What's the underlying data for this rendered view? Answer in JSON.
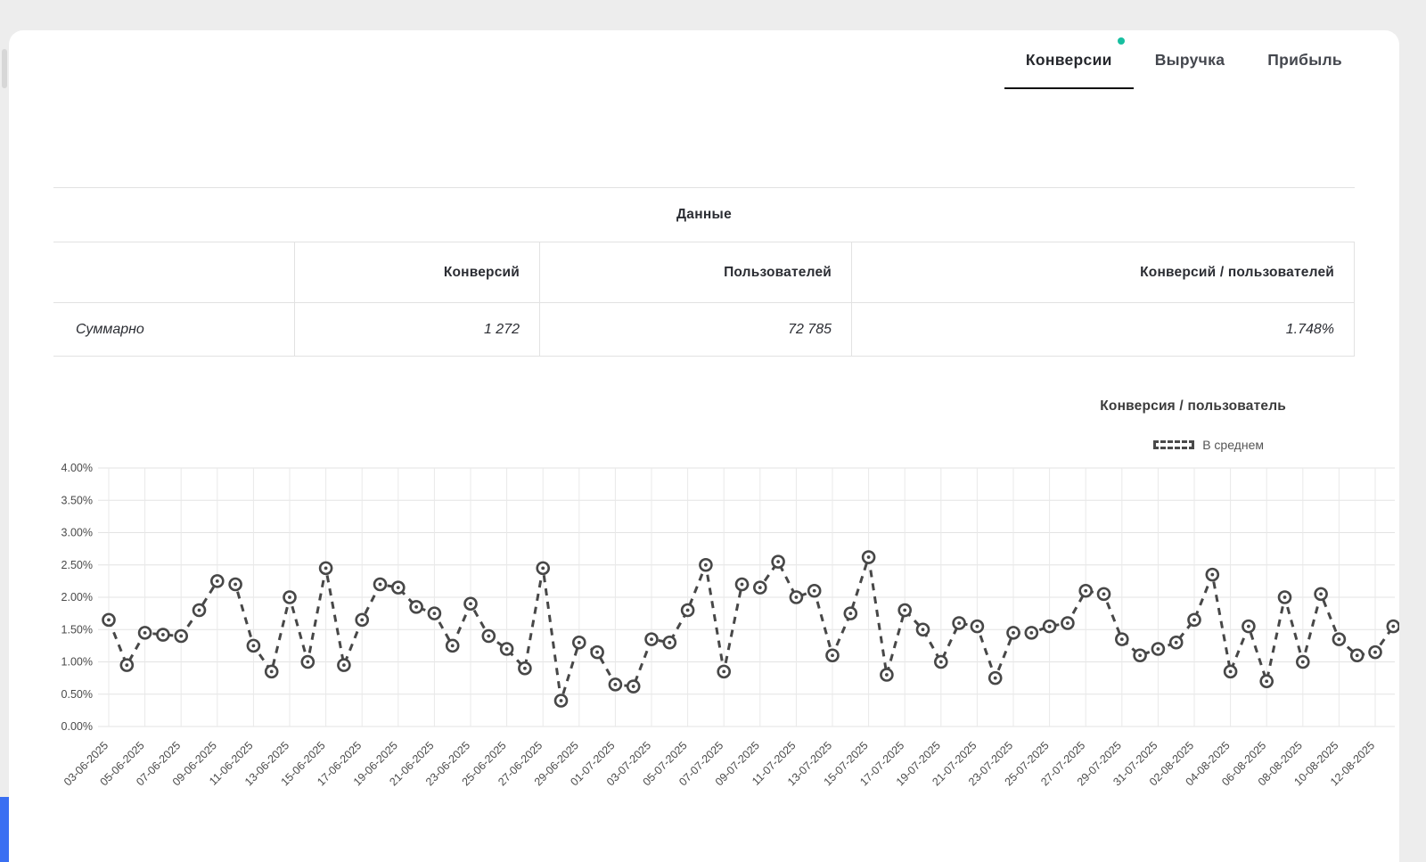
{
  "accent_color": "#17bfa0",
  "tabs": [
    {
      "label": "Конверсии",
      "active": true
    },
    {
      "label": "Выручка",
      "active": false
    },
    {
      "label": "Прибыль",
      "active": false
    }
  ],
  "table": {
    "title": "Данные",
    "columns": [
      "Конверсий",
      "Пользователей",
      "Конверсий / пользователей"
    ],
    "rows": [
      {
        "label": "Суммарно",
        "values": [
          "1 272",
          "72 785",
          "1.748%"
        ]
      }
    ]
  },
  "chart_data": {
    "type": "line",
    "title": "Конверсия / пользователь",
    "legend": [
      {
        "label": "В среднем",
        "style": "dashed"
      }
    ],
    "legend_position": "top-right",
    "grid": true,
    "line_color": "#474747",
    "ylim": [
      0,
      4
    ],
    "ytick_step": 0.5,
    "y_tick_labels": [
      "0.00%",
      "0.50%",
      "1.00%",
      "1.50%",
      "2.00%",
      "2.50%",
      "3.00%",
      "3.50%",
      "4.00%"
    ],
    "x_tick_labels": [
      "03-06-2025",
      "05-06-2025",
      "07-06-2025",
      "09-06-2025",
      "11-06-2025",
      "13-06-2025",
      "15-06-2025",
      "17-06-2025",
      "19-06-2025",
      "21-06-2025",
      "23-06-2025",
      "25-06-2025",
      "27-06-2025",
      "29-06-2025",
      "01-07-2025",
      "03-07-2025",
      "05-07-2025",
      "07-07-2025",
      "09-07-2025",
      "11-07-2025",
      "13-07-2025",
      "15-07-2025",
      "17-07-2025",
      "19-07-2025",
      "21-07-2025",
      "23-07-2025",
      "25-07-2025",
      "27-07-2025",
      "29-07-2025",
      "31-07-2025",
      "02-08-2025",
      "04-08-2025",
      "06-08-2025",
      "08-08-2025",
      "10-08-2025",
      "12-08-2025"
    ],
    "x": [
      "03-06-2025",
      "04-06-2025",
      "05-06-2025",
      "06-06-2025",
      "07-06-2025",
      "08-06-2025",
      "09-06-2025",
      "10-06-2025",
      "11-06-2025",
      "12-06-2025",
      "13-06-2025",
      "14-06-2025",
      "15-06-2025",
      "16-06-2025",
      "17-06-2025",
      "18-06-2025",
      "19-06-2025",
      "20-06-2025",
      "21-06-2025",
      "22-06-2025",
      "23-06-2025",
      "24-06-2025",
      "25-06-2025",
      "26-06-2025",
      "27-06-2025",
      "28-06-2025",
      "29-06-2025",
      "30-06-2025",
      "01-07-2025",
      "02-07-2025",
      "03-07-2025",
      "04-07-2025",
      "05-07-2025",
      "06-07-2025",
      "07-07-2025",
      "08-07-2025",
      "09-07-2025",
      "10-07-2025",
      "11-07-2025",
      "12-07-2025",
      "13-07-2025",
      "14-07-2025",
      "15-07-2025",
      "16-07-2025",
      "17-07-2025",
      "18-07-2025",
      "19-07-2025",
      "20-07-2025",
      "21-07-2025",
      "22-07-2025",
      "23-07-2025",
      "24-07-2025",
      "25-07-2025",
      "26-07-2025",
      "27-07-2025",
      "28-07-2025",
      "29-07-2025",
      "30-07-2025",
      "31-07-2025",
      "01-08-2025",
      "02-08-2025",
      "03-08-2025",
      "04-08-2025",
      "05-08-2025",
      "06-08-2025",
      "07-08-2025",
      "08-08-2025",
      "09-08-2025",
      "10-08-2025",
      "11-08-2025",
      "12-08-2025",
      "13-08-2025"
    ],
    "series": [
      {
        "name": "В среднем",
        "values": [
          1.65,
          0.95,
          1.45,
          1.42,
          1.4,
          1.8,
          2.25,
          2.2,
          1.25,
          0.85,
          2.0,
          1.0,
          2.45,
          0.95,
          1.65,
          2.2,
          2.15,
          1.85,
          1.75,
          1.25,
          1.9,
          1.4,
          1.2,
          0.9,
          2.45,
          0.4,
          1.3,
          1.15,
          0.65,
          0.62,
          1.35,
          1.3,
          1.8,
          2.5,
          0.85,
          2.2,
          2.15,
          2.55,
          2.0,
          2.1,
          1.1,
          1.75,
          2.62,
          0.8,
          1.8,
          1.5,
          1.0,
          1.6,
          1.55,
          0.75,
          1.45,
          1.45,
          1.55,
          1.6,
          2.1,
          2.05,
          1.35,
          1.1,
          1.2,
          1.3,
          1.65,
          2.35,
          0.85,
          1.55,
          0.7,
          2.0,
          1.0,
          2.05,
          1.35,
          1.1,
          1.15,
          1.55
        ]
      }
    ]
  }
}
